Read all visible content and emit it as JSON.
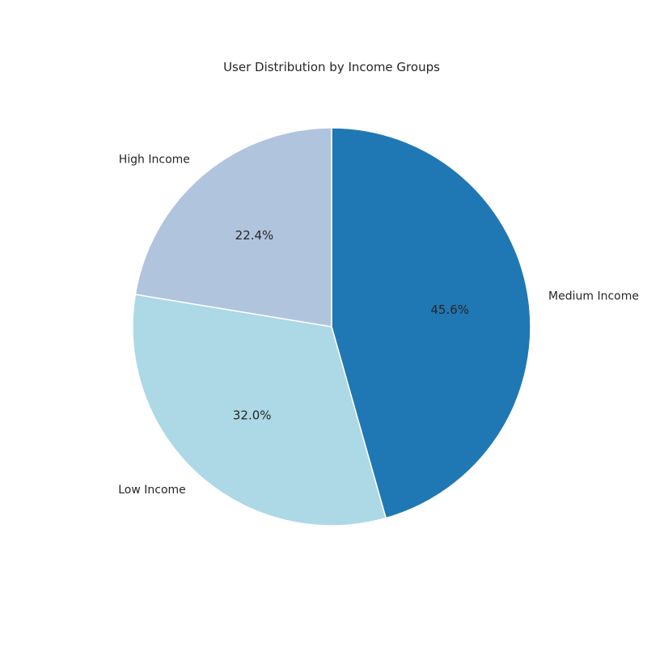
{
  "chart_data": {
    "type": "pie",
    "title": "User Distribution by Income Groups",
    "start_angle_deg": 90,
    "direction": "clockwise",
    "slices": [
      {
        "label": "Medium Income",
        "value": 45.6,
        "pct_label": "45.6%",
        "color": "#1f78b4"
      },
      {
        "label": "Low Income",
        "value": 32.0,
        "pct_label": "32.0%",
        "color": "#add8e6"
      },
      {
        "label": "High Income",
        "value": 22.4,
        "pct_label": "22.4%",
        "color": "#b0c4de"
      }
    ],
    "edge_color": "#ffffff"
  }
}
